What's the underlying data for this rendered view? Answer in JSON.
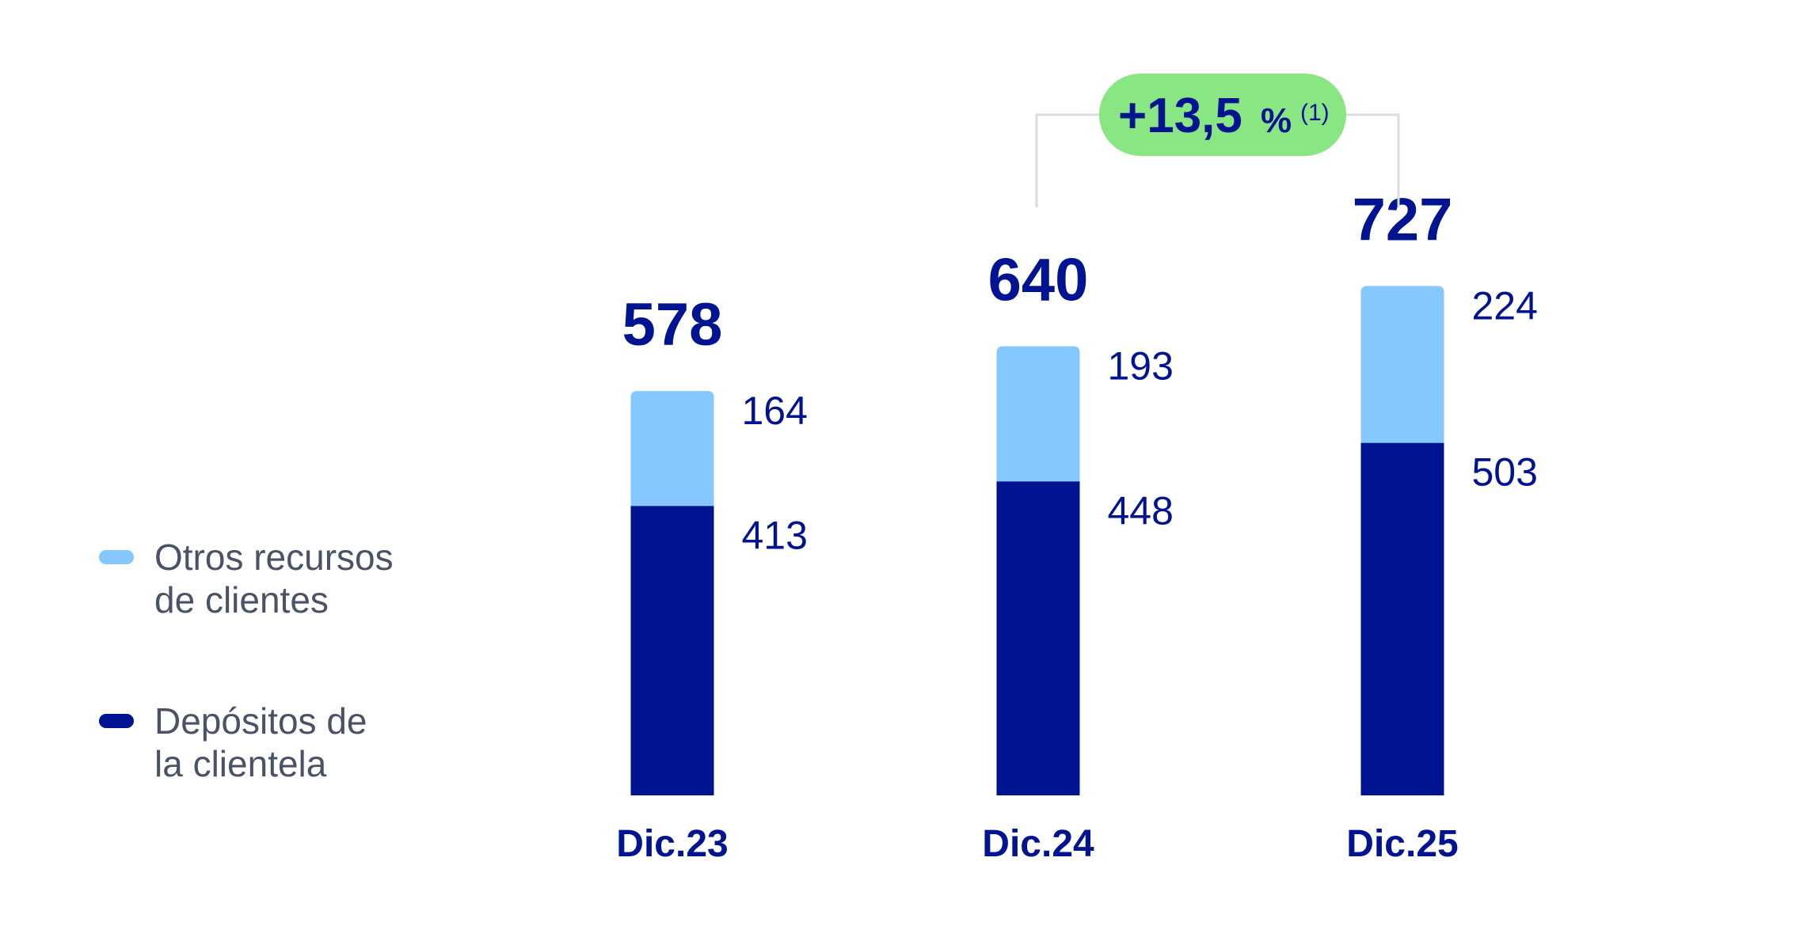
{
  "chart_data": {
    "type": "bar",
    "stacked": true,
    "categories": [
      "Dic.23",
      "Dic.24",
      "Dic.25"
    ],
    "series": [
      {
        "name": "Depósitos de la clientela",
        "values": [
          413,
          448,
          503
        ],
        "color": "#001391"
      },
      {
        "name": "Otros recursos de clientes",
        "values": [
          164,
          193,
          224
        ],
        "color": "#85c8ff"
      }
    ],
    "totals": [
      "578",
      "640",
      "727"
    ],
    "segment_labels": {
      "lower": [
        "413",
        "448",
        "503"
      ],
      "upper": [
        "164",
        "193",
        "224"
      ]
    },
    "growth_annotation": {
      "value": "+13,5",
      "percent": "%",
      "note": "(1)",
      "color": "#88e783",
      "from": "Dic.24",
      "to": "Dic.25"
    },
    "legend": {
      "placement": "left",
      "items": [
        {
          "line1": "Otros recursos",
          "line2": "de clientes",
          "color": "#85c8ff"
        },
        {
          "line1": "Depósitos de",
          "line2": "la clientela",
          "color": "#001391"
        }
      ]
    },
    "ylim": [
      0,
      800
    ],
    "grid": false
  }
}
